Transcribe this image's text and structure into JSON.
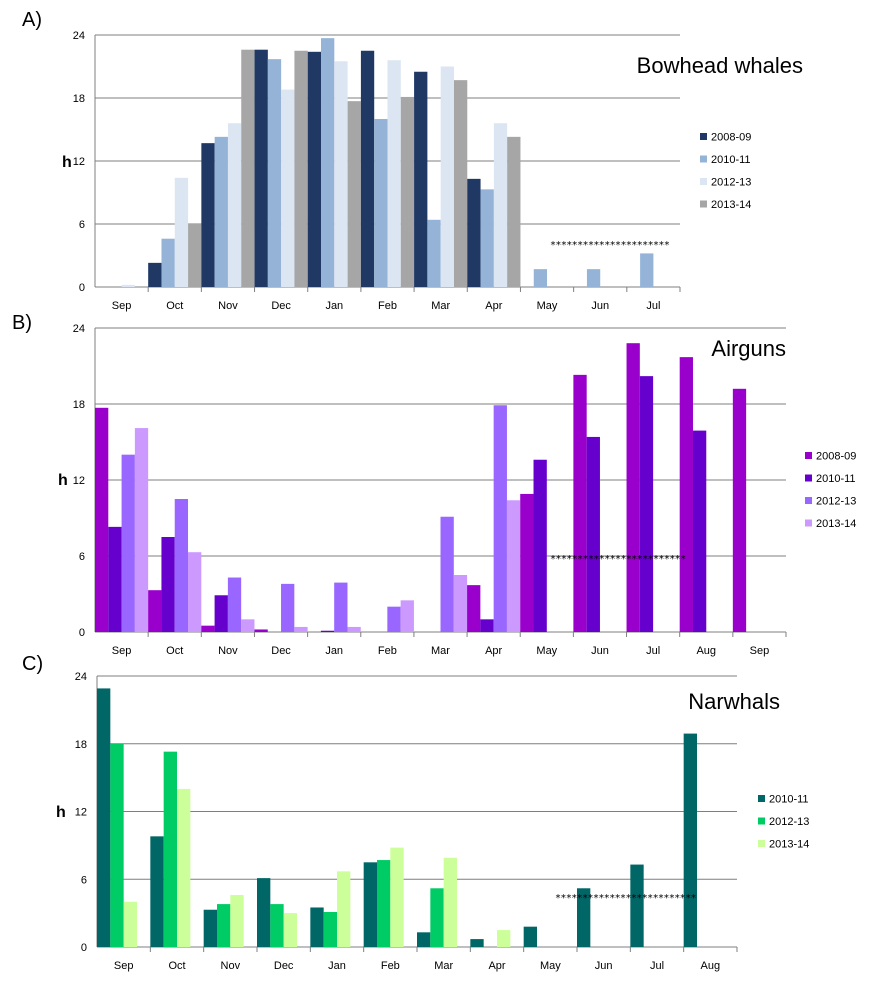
{
  "chart_data": [
    {
      "type": "bar",
      "panel": "A)",
      "title": "Bowhead whales",
      "ylabel": "h",
      "ylim": [
        0,
        24
      ],
      "yticks": [
        "0",
        "6",
        "12",
        "18",
        "24"
      ],
      "categories": [
        "Sep",
        "Oct",
        "Nov",
        "Dec",
        "Jan",
        "Feb",
        "Mar",
        "Apr",
        "May",
        "Jun",
        "Jul"
      ],
      "series": [
        {
          "name": "2008-09",
          "color": "#1f3864",
          "values": [
            0,
            2.3,
            13.7,
            22.6,
            22.4,
            22.5,
            20.5,
            10.3,
            0,
            0,
            0
          ]
        },
        {
          "name": "2010-11",
          "color": "#95b3d7",
          "values": [
            0,
            4.6,
            14.3,
            21.7,
            23.7,
            16.0,
            6.4,
            9.3,
            1.7,
            1.7,
            3.2
          ]
        },
        {
          "name": "2012-13",
          "color": "#dce6f2",
          "values": [
            0.2,
            10.4,
            15.6,
            18.8,
            21.5,
            21.6,
            21.0,
            15.6,
            0,
            0,
            0
          ]
        },
        {
          "name": "2013-14",
          "color": "#a6a6a6",
          "values": [
            0,
            6.0,
            22.6,
            22.5,
            17.7,
            18.1,
            19.7,
            14.3,
            0,
            0,
            0
          ]
        }
      ],
      "annotation": "**********************"
    },
    {
      "type": "bar",
      "panel": "B)",
      "title": "Airguns",
      "ylabel": "h",
      "ylim": [
        0,
        24
      ],
      "yticks": [
        "0",
        "6",
        "12",
        "18",
        "24"
      ],
      "categories": [
        "Sep",
        "Oct",
        "Nov",
        "Dec",
        "Jan",
        "Feb",
        "Mar",
        "Apr",
        "May",
        "Jun",
        "Jul",
        "Aug",
        "Sep"
      ],
      "series": [
        {
          "name": "2008-09",
          "color": "#9900cc",
          "values": [
            17.7,
            3.3,
            0.5,
            0.2,
            0,
            0,
            0,
            3.7,
            10.9,
            20.3,
            22.8,
            21.7,
            19.2
          ]
        },
        {
          "name": "2010-11",
          "color": "#6600cc",
          "values": [
            8.3,
            7.5,
            2.9,
            0,
            0.1,
            0,
            0,
            1.0,
            13.6,
            15.4,
            20.2,
            15.9,
            0
          ]
        },
        {
          "name": "2012-13",
          "color": "#9966ff",
          "values": [
            14.0,
            10.5,
            4.3,
            3.8,
            3.9,
            2.0,
            9.1,
            17.9,
            0,
            0,
            0,
            0,
            0
          ]
        },
        {
          "name": "2013-14",
          "color": "#cc99ff",
          "values": [
            16.1,
            6.3,
            1.0,
            0.4,
            0.4,
            2.5,
            4.5,
            10.4,
            0,
            0,
            0,
            0,
            0
          ]
        }
      ],
      "annotation": "*************************"
    },
    {
      "type": "bar",
      "panel": "C)",
      "title": "Narwhals",
      "ylabel": "h",
      "ylim": [
        0,
        24
      ],
      "yticks": [
        "0",
        "6",
        "12",
        "18",
        "24"
      ],
      "categories": [
        "Sep",
        "Oct",
        "Nov",
        "Dec",
        "Jan",
        "Feb",
        "Mar",
        "Apr",
        "May",
        "Jun",
        "Jul",
        "Aug"
      ],
      "series": [
        {
          "name": "2010-11",
          "color": "#006666",
          "values": [
            22.9,
            9.8,
            3.3,
            6.1,
            3.5,
            7.5,
            1.3,
            0.7,
            1.8,
            5.2,
            7.3,
            18.9
          ]
        },
        {
          "name": "2012-13",
          "color": "#00cc66",
          "values": [
            18.0,
            17.3,
            3.8,
            3.8,
            3.1,
            7.7,
            5.2,
            0,
            0,
            0,
            0,
            0
          ]
        },
        {
          "name": "2013-14",
          "color": "#ccff99",
          "values": [
            4.0,
            14.0,
            4.6,
            3.0,
            6.7,
            8.8,
            7.9,
            1.5,
            0,
            0,
            0,
            0
          ]
        }
      ],
      "annotation": "**************************"
    }
  ]
}
